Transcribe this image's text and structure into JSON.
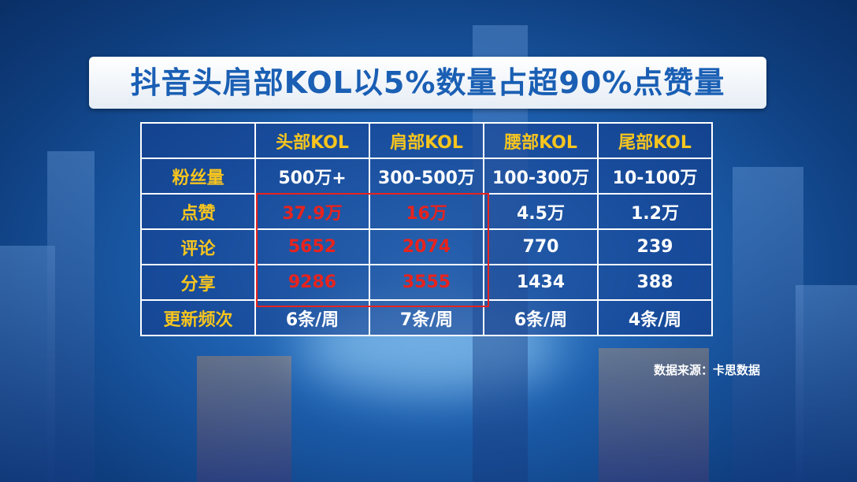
{
  "title": "抖音头肩部KOL以5%数量占超90%点赞量",
  "table": {
    "columns": [
      "头部KOL",
      "肩部KOL",
      "腰部KOL",
      "尾部KOL"
    ],
    "rows": [
      {
        "label": "粉丝量",
        "cells": [
          "500万+",
          "300-500万",
          "100-300万",
          "10-100万"
        ]
      },
      {
        "label": "点赞",
        "cells": [
          "37.9万",
          "16万",
          "4.5万",
          "1.2万"
        ]
      },
      {
        "label": "评论",
        "cells": [
          "5652",
          "2074",
          "770",
          "239"
        ]
      },
      {
        "label": "分享",
        "cells": [
          "9286",
          "3555",
          "1434",
          "388"
        ]
      },
      {
        "label": "更新频次",
        "cells": [
          "6条/周",
          "7条/周",
          "6条/周",
          "4条/周"
        ]
      }
    ]
  },
  "source": "数据来源：卡思数据"
}
